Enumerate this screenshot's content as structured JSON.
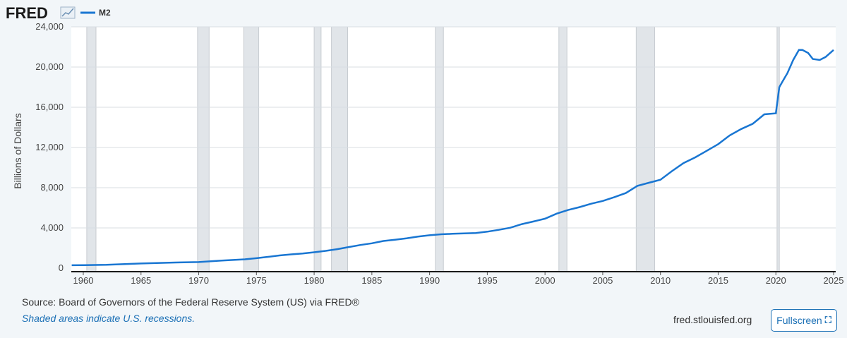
{
  "brand": {
    "logo_text": "FRED"
  },
  "chart_data": {
    "type": "line",
    "title": "",
    "ylabel": "Billions of Dollars",
    "xlabel": "",
    "xlim": [
      1959,
      2025
    ],
    "ylim": [
      0,
      24000
    ],
    "x_ticks": [
      "1960",
      "1965",
      "1970",
      "1975",
      "1980",
      "1985",
      "1990",
      "1995",
      "2000",
      "2005",
      "2010",
      "2015",
      "2020",
      "2025"
    ],
    "y_ticks": [
      "0",
      "4,000",
      "8,000",
      "12,000",
      "16,000",
      "20,000",
      "24,000"
    ],
    "y_tick_values": [
      0,
      4000,
      8000,
      12000,
      16000,
      20000,
      24000
    ],
    "x_tick_values": [
      1960,
      1965,
      1970,
      1975,
      1980,
      1985,
      1990,
      1995,
      2000,
      2005,
      2010,
      2015,
      2020,
      2025
    ],
    "grid": true,
    "legend_position": "top-left",
    "series": [
      {
        "name": "M2",
        "color": "#1976d2",
        "points": [
          [
            1959.0,
            290
          ],
          [
            1960.0,
            300
          ],
          [
            1962.0,
            330
          ],
          [
            1965.0,
            460
          ],
          [
            1968.0,
            560
          ],
          [
            1970.0,
            600
          ],
          [
            1972.0,
            760
          ],
          [
            1974.0,
            880
          ],
          [
            1975.0,
            990
          ],
          [
            1976.0,
            1120
          ],
          [
            1977.0,
            1260
          ],
          [
            1978.0,
            1370
          ],
          [
            1979.0,
            1460
          ],
          [
            1980.0,
            1580
          ],
          [
            1981.0,
            1720
          ],
          [
            1982.0,
            1890
          ],
          [
            1983.0,
            2100
          ],
          [
            1984.0,
            2300
          ],
          [
            1985.0,
            2470
          ],
          [
            1986.0,
            2700
          ],
          [
            1987.0,
            2830
          ],
          [
            1988.0,
            2970
          ],
          [
            1989.0,
            3140
          ],
          [
            1990.0,
            3270
          ],
          [
            1991.0,
            3370
          ],
          [
            1992.0,
            3420
          ],
          [
            1993.0,
            3460
          ],
          [
            1994.0,
            3490
          ],
          [
            1995.0,
            3630
          ],
          [
            1996.0,
            3810
          ],
          [
            1997.0,
            4020
          ],
          [
            1998.0,
            4380
          ],
          [
            1999.0,
            4640
          ],
          [
            2000.0,
            4920
          ],
          [
            2001.0,
            5420
          ],
          [
            2002.0,
            5780
          ],
          [
            2003.0,
            6070
          ],
          [
            2004.0,
            6410
          ],
          [
            2005.0,
            6680
          ],
          [
            2006.0,
            7060
          ],
          [
            2007.0,
            7470
          ],
          [
            2008.0,
            8180
          ],
          [
            2009.0,
            8490
          ],
          [
            2010.0,
            8790
          ],
          [
            2011.0,
            9650
          ],
          [
            2012.0,
            10450
          ],
          [
            2013.0,
            11010
          ],
          [
            2014.0,
            11660
          ],
          [
            2015.0,
            12330
          ],
          [
            2016.0,
            13200
          ],
          [
            2017.0,
            13840
          ],
          [
            2018.0,
            14360
          ],
          [
            2019.0,
            15300
          ],
          [
            2020.0,
            15400
          ],
          [
            2020.3,
            18000
          ],
          [
            2020.6,
            18600
          ],
          [
            2021.0,
            19400
          ],
          [
            2021.5,
            20700
          ],
          [
            2022.0,
            21700
          ],
          [
            2022.3,
            21700
          ],
          [
            2022.8,
            21400
          ],
          [
            2023.2,
            20800
          ],
          [
            2023.8,
            20700
          ],
          [
            2024.3,
            21000
          ],
          [
            2025.0,
            21700
          ]
        ]
      }
    ],
    "recessions": [
      [
        1960.3,
        1961.1
      ],
      [
        1969.9,
        1970.9
      ],
      [
        1973.9,
        1975.2
      ],
      [
        1980.0,
        1980.6
      ],
      [
        1981.5,
        1982.9
      ],
      [
        1990.5,
        1991.2
      ],
      [
        2001.2,
        2001.9
      ],
      [
        2007.9,
        2009.5
      ],
      [
        2020.1,
        2020.3
      ]
    ]
  },
  "footer": {
    "source": "Source: Board of Governors of the Federal Reserve System (US) via FRED®",
    "note": "Shaded areas indicate U.S. recessions.",
    "site": "fred.stlouisfed.org",
    "fullscreen_label": "Fullscreen"
  },
  "colors": {
    "line": "#1976d2",
    "recession_fill": "#e1e5e9",
    "recession_border": "#c7ccd1",
    "plot_bg": "#ffffff",
    "page_bg": "#f2f6f9",
    "grid": "#d8dde2",
    "note_link": "#1a6fb5"
  },
  "icons": {
    "logo_graph": "rising-line-chart-icon",
    "fullscreen": "fullscreen-expand-icon"
  }
}
